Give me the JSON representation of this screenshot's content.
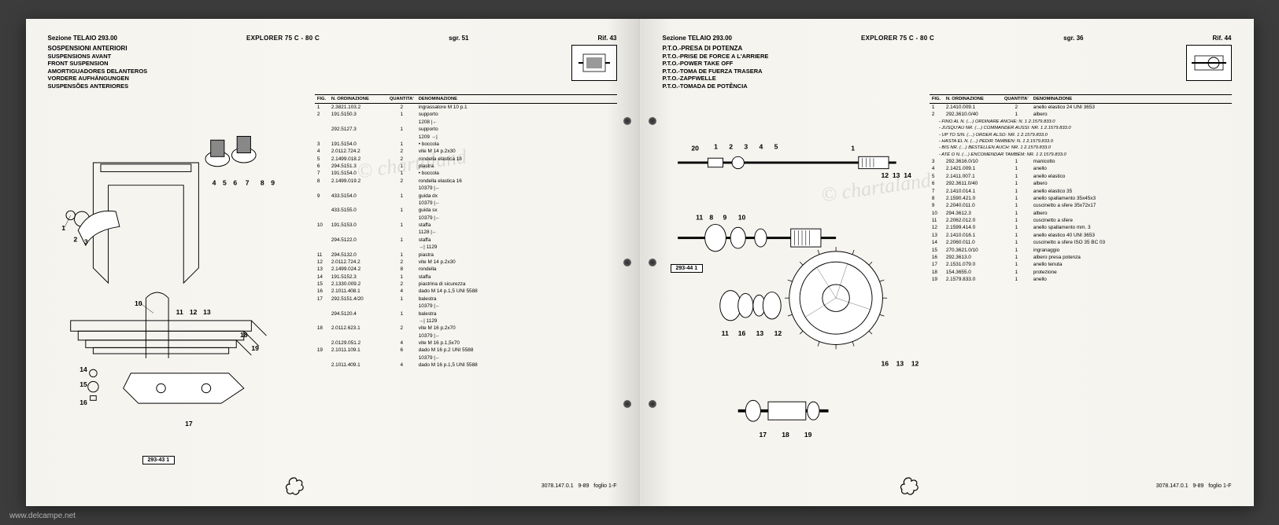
{
  "watermark": "www.delcampe.net",
  "chartaland": "© chartaland",
  "left": {
    "section": "Sezione TELAIO 293.00",
    "model": "EXPLORER 75 C - 80 C",
    "sgr": "sgr. 51",
    "rif": "Rif. 43",
    "titles": [
      "SOSPENSIONI ANTERIORI",
      "SUSPENSIONS AVANT",
      "FRONT SUSPENSION",
      "AMORTIGUADORES DELANTEROS",
      "VORDERE AUFHÄNGUNGEN",
      "SUSPENSÕES ANTERIORES"
    ],
    "columns": [
      "FIG.",
      "N. ORDINAZIONE",
      "QUANTITA'",
      "DENOMINAZIONE"
    ],
    "rows": [
      {
        "f": "1",
        "o": "2.3821.103.2",
        "q": "2",
        "d": "ingrassatore M 10 p.1"
      },
      {
        "f": "2",
        "o": "191.5150.3",
        "q": "1",
        "d": "supporto"
      },
      {
        "f": "",
        "o": "",
        "q": "",
        "d": "1208 |←"
      },
      {
        "f": "",
        "o": "292.5127.3",
        "q": "1",
        "d": "supporto"
      },
      {
        "f": "",
        "o": "",
        "q": "",
        "d": "1209 →|"
      },
      {
        "f": "3",
        "o": "191.5154.0",
        "q": "1",
        "d": "• boccola"
      },
      {
        "f": "4",
        "o": "2.0112.724.2",
        "q": "2",
        "d": "vite M 14 p.2x30"
      },
      {
        "f": "5",
        "o": "2.1499.018.2",
        "q": "2",
        "d": "rondella elastica 18"
      },
      {
        "f": "6",
        "o": "294.5151.3",
        "q": "1",
        "d": "piastra"
      },
      {
        "f": "7",
        "o": "191.5154.0",
        "q": "1",
        "d": "• boccola"
      },
      {
        "f": "8",
        "o": "2.1499.019.2",
        "q": "2",
        "d": "rondella elastica 16"
      },
      {
        "f": "",
        "o": "",
        "q": "",
        "d": "10379 |←"
      },
      {
        "f": "9",
        "o": "433.5154.0",
        "q": "1",
        "d": "guida dx"
      },
      {
        "f": "",
        "o": "",
        "q": "",
        "d": "10379 |←"
      },
      {
        "f": "",
        "o": "433.5155.0",
        "q": "1",
        "d": "guida sx"
      },
      {
        "f": "",
        "o": "",
        "q": "",
        "d": "10379 |←"
      },
      {
        "f": "10",
        "o": "191.5153.0",
        "q": "1",
        "d": "staffa"
      },
      {
        "f": "",
        "o": "",
        "q": "",
        "d": "1128 |←"
      },
      {
        "f": "",
        "o": "294.5122.0",
        "q": "1",
        "d": "staffa"
      },
      {
        "f": "",
        "o": "",
        "q": "",
        "d": "→| 1129"
      },
      {
        "f": "11",
        "o": "294.5132.0",
        "q": "1",
        "d": "piastra"
      },
      {
        "f": "12",
        "o": "2.0112.724.2",
        "q": "2",
        "d": "vite M 14 p.2x30"
      },
      {
        "f": "13",
        "o": "2.1499.024.2",
        "q": "8",
        "d": "rondella"
      },
      {
        "f": "14",
        "o": "191.5152.3",
        "q": "1",
        "d": "staffa"
      },
      {
        "f": "15",
        "o": "2.1330.009.2",
        "q": "2",
        "d": "piastrina di sicurezza"
      },
      {
        "f": "16",
        "o": "2.1011.408.1",
        "q": "4",
        "d": "dado M 14 p.1,5 UNI 5588"
      },
      {
        "f": "17",
        "o": "292.5151.4/20",
        "q": "1",
        "d": "balestra"
      },
      {
        "f": "",
        "o": "",
        "q": "",
        "d": "10379 |←"
      },
      {
        "f": "",
        "o": "294.5120.4",
        "q": "1",
        "d": "balestra"
      },
      {
        "f": "",
        "o": "",
        "q": "",
        "d": "→| 1129"
      },
      {
        "f": "18",
        "o": "2.0112.623.1",
        "q": "2",
        "d": "vite M 16 p.2x70"
      },
      {
        "f": "",
        "o": "",
        "q": "",
        "d": "10379 |←"
      },
      {
        "f": "",
        "o": "2.0129.051.2",
        "q": "4",
        "d": "vite M 16 p.1,5x70"
      },
      {
        "f": "19",
        "o": "2.1011.109.1",
        "q": "6",
        "d": "dado M 16 p.2 UNI 5588"
      },
      {
        "f": "",
        "o": "",
        "q": "",
        "d": "10379 |←"
      },
      {
        "f": "",
        "o": "2.1011.409.1",
        "q": "4",
        "d": "dado M 16 p.1,5 UNI 5588"
      }
    ],
    "fig_label": "293-43 1",
    "footer_code": "3078.147.0.1",
    "footer_date": "9-89",
    "footer_page": "foglio 1-F"
  },
  "right": {
    "section": "Sezione TELAIO 293.00",
    "model": "EXPLORER 75 C - 80 C",
    "sgr": "sgr. 36",
    "rif": "Rif. 44",
    "titles": [
      "P.T.O.-PRESA DI POTENZA",
      "P.T.O.-PRISE DE FORCE A L'ARRIERE",
      "P.T.O.-POWER TAKE OFF",
      "P.T.O.-TOMA DE FUERZA TRASERA",
      "P.T.O.-ZAPFWELLE",
      "P.T.O.-TOMADA DE POTÊNCIA"
    ],
    "columns": [
      "FIG.",
      "N. ORDINAZIONE",
      "QUANTITA'",
      "DENOMINAZIONE"
    ],
    "rows": [
      {
        "f": "1",
        "o": "2.1410.009.1",
        "q": "2",
        "d": "anello elastico 24 UNI 3653"
      },
      {
        "f": "2",
        "o": "292.3610.0/40",
        "q": "1",
        "d": "albero"
      }
    ],
    "notes": [
      "- FINO AL N. (…) ORDINARE ANCHE: N. 1 2.1579.833.0",
      "- JUSQU'AU NR. (…) COMMANDER AUSSI: NR. 1 2.1579.833.0",
      "- UP TO S/N. (…) ORDER ALSO: NR. 1 2.1579.833.0",
      "- HASTA EL N. (…) PEDIR TAMBIEN: N. 1 2.1579.833.0",
      "- BIS NR. (…) BESTELLEN AUCH: NR. 1 2.1579.833.0",
      "- ATÉ O N. (…) ENCOMENDAR TAMBÉM: NR. 1 2.1579.833.0"
    ],
    "rows2": [
      {
        "f": "3",
        "o": "292.3616.0/10",
        "q": "1",
        "d": "manicotto"
      },
      {
        "f": "4",
        "o": "2.1421.009.1",
        "q": "1",
        "d": "anello"
      },
      {
        "f": "5",
        "o": "2.1411.007.1",
        "q": "1",
        "d": "anello elastico"
      },
      {
        "f": "6",
        "o": "292.3611.0/40",
        "q": "1",
        "d": "albero"
      },
      {
        "f": "7",
        "o": "2.1410.014.1",
        "q": "1",
        "d": "anello elastico 35"
      },
      {
        "f": "8",
        "o": "2.1590.421.0",
        "q": "1",
        "d": "anello spallamento 35x45x3"
      },
      {
        "f": "9",
        "o": "2.2040.011.0",
        "q": "1",
        "d": "cuscinetto a sfere 35x72x17"
      },
      {
        "f": "10",
        "o": "294.3612.3",
        "q": "1",
        "d": "albero"
      },
      {
        "f": "11",
        "o": "2.2062.012.0",
        "q": "1",
        "d": "cuscinetto a sfere"
      },
      {
        "f": "12",
        "o": "2.1599.414.0",
        "q": "1",
        "d": "anello spallamento mm. 3"
      },
      {
        "f": "13",
        "o": "2.1410.016.1",
        "q": "1",
        "d": "anello elastico 40 UNI 3653"
      },
      {
        "f": "14",
        "o": "2.2060.011.0",
        "q": "1",
        "d": "cuscinetto a sfere ISO 35 BC 03"
      },
      {
        "f": "15",
        "o": "270.3621.0/10",
        "q": "1",
        "d": "ingranaggio"
      },
      {
        "f": "16",
        "o": "292.3613.0",
        "q": "1",
        "d": "albero presa potenza"
      },
      {
        "f": "17",
        "o": "2.1531.079.0",
        "q": "1",
        "d": "anello tenuta"
      },
      {
        "f": "18",
        "o": "154.3655.0",
        "q": "1",
        "d": "protezione"
      },
      {
        "f": "19",
        "o": "2.1579.833.0",
        "q": "1",
        "d": "anello"
      }
    ],
    "fig_label": "293-44 1",
    "footer_code": "3078.147.0.1",
    "footer_date": "9-89",
    "footer_page": "foglio 1-F"
  },
  "colors": {
    "page_bg": "#f5f3ee",
    "outer_bg": "#3c3c3c",
    "line": "#000000"
  }
}
